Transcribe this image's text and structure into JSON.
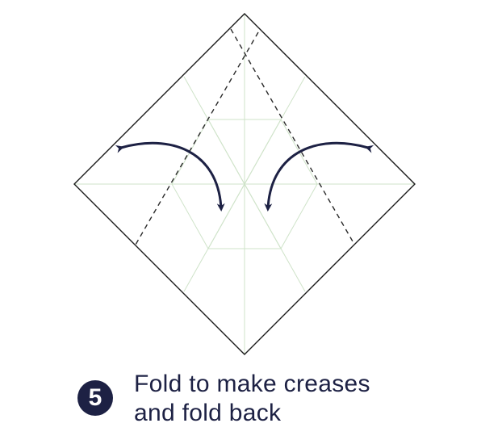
{
  "step": {
    "number": "5",
    "instruction_lines": [
      "Fold to make creases",
      "and fold back"
    ]
  },
  "colors": {
    "paper_edge": "#1a1a1a",
    "fold_line": "#2a2a2a",
    "crease_guide": "#cfe3c9",
    "arrow": "#1d2144",
    "badge_bg": "#1d2144",
    "badge_text": "#ffffff",
    "text": "#1d2144"
  },
  "diagram": {
    "paper_shape": "square-rotated-45",
    "valley_folds": 2,
    "crease_arrows": 2
  }
}
